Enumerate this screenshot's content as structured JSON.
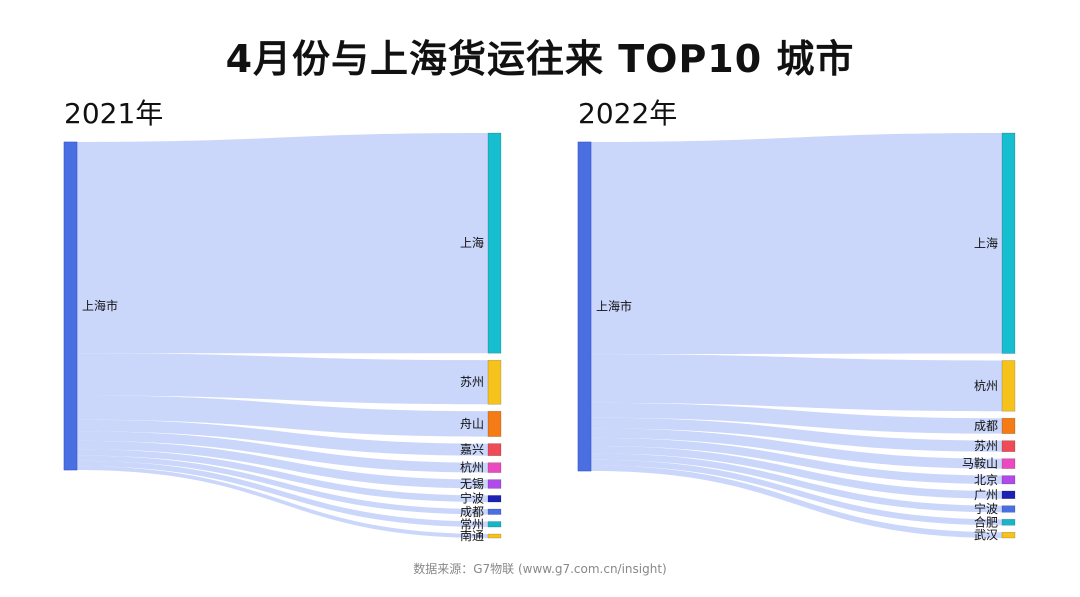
{
  "title": "4月份与上海货运往来 TOP10 城市",
  "source": "数据来源：G7物联 (www.g7.com.cn/insight)",
  "colors": {
    "source_node": "#4a6fe3",
    "link": "#c5d3fa",
    "palette": [
      "#17becf",
      "#f6c21c",
      "#f57c15",
      "#ef4a57",
      "#ec49c0",
      "#b04be8",
      "#1e22b4",
      "#4a6fe3",
      "#16b6c8",
      "#f6c21c"
    ]
  },
  "chart_data": [
    {
      "type": "sankey",
      "title": "2021年",
      "source": "上海市",
      "targets": [
        "上海",
        "苏州",
        "舟山",
        "嘉兴",
        "杭州",
        "无锡",
        "宁波",
        "成都",
        "常州",
        "南通"
      ],
      "values": [
        100,
        20,
        11.5,
        5.5,
        4.5,
        4,
        3,
        2.5,
        2.5,
        1.8
      ]
    },
    {
      "type": "sankey",
      "title": "2022年",
      "source": "上海市",
      "targets": [
        "上海",
        "杭州",
        "成都",
        "苏州",
        "马鞍山",
        "北京",
        "广州",
        "宁波",
        "合肥",
        "武汉"
      ],
      "values": [
        100,
        23,
        7,
        5,
        4.5,
        3.8,
        3.5,
        3,
        2.7,
        2.6
      ]
    }
  ]
}
